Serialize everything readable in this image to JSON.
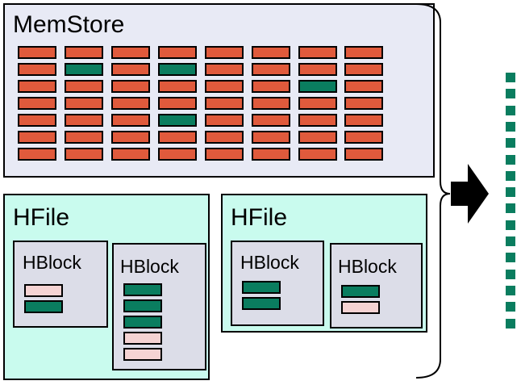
{
  "colors": {
    "red": "#e05a3c",
    "green": "#0a7d5f",
    "pink": "#f5d3d3",
    "memstore_bg": "#e8eaf5",
    "hfile_bg": "#c9fbee",
    "hblock_bg": "#dcdde8"
  },
  "memstore": {
    "label": "MemStore",
    "rows": [
      [
        "red",
        "red",
        "red",
        "red",
        "red",
        "red",
        "red",
        "red"
      ],
      [
        "red",
        "green",
        "red",
        "green",
        "red",
        "red",
        "red",
        "red"
      ],
      [
        "red",
        "red",
        "red",
        "red",
        "red",
        "red",
        "green",
        "red"
      ],
      [
        "red",
        "red",
        "red",
        "red",
        "red",
        "red",
        "red",
        "red"
      ],
      [
        "red",
        "red",
        "red",
        "green",
        "red",
        "red",
        "red",
        "red"
      ],
      [
        "red",
        "red",
        "red",
        "red",
        "red",
        "red",
        "red",
        "red"
      ],
      [
        "red",
        "red",
        "red",
        "red",
        "red",
        "red",
        "red",
        "red"
      ]
    ]
  },
  "hfiles": [
    {
      "label": "HFile",
      "blocks": [
        {
          "label": "HBlock",
          "entries": [
            "pink",
            "green"
          ]
        },
        {
          "label": "HBlock",
          "entries": [
            "green",
            "green",
            "green",
            "pink",
            "pink"
          ]
        }
      ]
    },
    {
      "label": "HFile",
      "blocks": [
        {
          "label": "HBlock",
          "entries": [
            "green",
            "green"
          ]
        },
        {
          "label": "HBlock",
          "entries": [
            "green",
            "pink"
          ]
        }
      ]
    }
  ],
  "arrow": {
    "icon": "right-arrow-icon"
  },
  "output": {
    "count": 16,
    "color": "green",
    "icon": "merged-output-dots"
  }
}
